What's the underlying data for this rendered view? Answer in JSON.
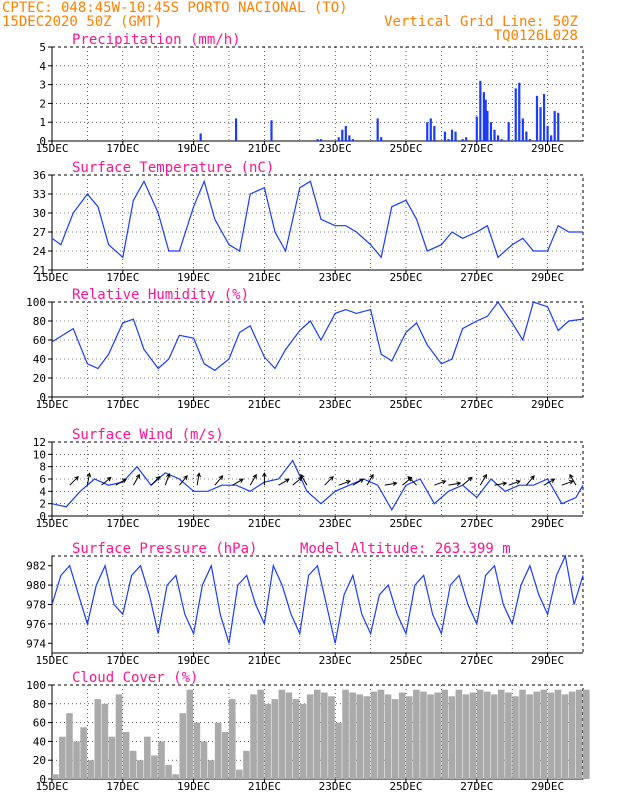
{
  "header": {
    "line1": "CPTEC:   048:45W-10:45S  PORTO NACIONAL (TO)",
    "line2": "15DEC2020 50Z (GMT)",
    "right1": "Vertical Grid Line: 50Z",
    "right2": "TQ0126L028"
  },
  "colors": {
    "header": "#ff8000",
    "title": "#ff1493",
    "line": "#1a3cff",
    "cloud": "#aaaaaa",
    "wind": "#000000"
  },
  "chart_data": [
    {
      "type": "bar",
      "key": "precip",
      "title": "Precipitation (mm/h)",
      "ylim": [
        0,
        5
      ],
      "yticks": [
        0,
        1,
        2,
        3,
        4,
        5
      ],
      "xticks": [
        "15DEC",
        "17DEC",
        "19DEC",
        "21DEC",
        "23DEC",
        "25DEC",
        "27DEC",
        "29DEC"
      ],
      "x_days": [
        0,
        15
      ],
      "x": [
        4.2,
        5.2,
        6.2,
        7.5,
        7.6,
        8.1,
        8.2,
        8.3,
        8.4,
        8.5,
        9.2,
        9.3,
        10.6,
        10.7,
        10.8,
        11.1,
        11.2,
        11.3,
        11.4,
        11.6,
        11.7,
        12.0,
        12.1,
        12.2,
        12.25,
        12.3,
        12.4,
        12.5,
        12.6,
        12.7,
        12.9,
        13.1,
        13.2,
        13.3,
        13.4,
        13.5,
        13.7,
        13.8,
        13.9,
        14.0,
        14.1,
        14.2,
        14.3
      ],
      "values": [
        0.4,
        1.2,
        1.1,
        0.1,
        0.1,
        0.2,
        0.6,
        0.8,
        0.3,
        0.1,
        1.2,
        0.2,
        1.0,
        1.2,
        0.8,
        0.5,
        0.1,
        0.6,
        0.5,
        0.1,
        0.2,
        1.3,
        3.2,
        2.6,
        2.2,
        1.6,
        1.0,
        0.6,
        0.3,
        0.1,
        1.0,
        2.8,
        3.1,
        1.2,
        0.5,
        0.1,
        2.4,
        1.8,
        2.5,
        0.8,
        0.3,
        1.6,
        1.5
      ]
    },
    {
      "type": "line",
      "key": "temp",
      "title": "Surface Temperature (nC)",
      "ylim": [
        21,
        36
      ],
      "yticks": [
        21,
        24,
        27,
        30,
        33,
        36
      ],
      "xticks": [
        "15DEC",
        "17DEC",
        "19DEC",
        "21DEC",
        "23DEC",
        "25DEC",
        "27DEC",
        "29DEC"
      ],
      "x_days": [
        0,
        15
      ],
      "x": [
        0,
        0.25,
        0.6,
        1.0,
        1.3,
        1.6,
        2.0,
        2.3,
        2.6,
        3.0,
        3.3,
        3.6,
        4.0,
        4.3,
        4.6,
        5.0,
        5.3,
        5.6,
        6.0,
        6.3,
        6.6,
        7.0,
        7.3,
        7.6,
        8.0,
        8.3,
        8.6,
        9.0,
        9.3,
        9.6,
        10.0,
        10.3,
        10.6,
        11.0,
        11.3,
        11.6,
        12.0,
        12.3,
        12.6,
        13.0,
        13.3,
        13.6,
        14.0,
        14.3,
        14.6,
        15.0
      ],
      "values": [
        26,
        25,
        30,
        33,
        31,
        25,
        23,
        32,
        35,
        30,
        24,
        24,
        31,
        35,
        29,
        25,
        24,
        33,
        34,
        27,
        24,
        34,
        35,
        29,
        28,
        28,
        27,
        25,
        23,
        31,
        32,
        29,
        24,
        25,
        27,
        26,
        27,
        28,
        23,
        25,
        26,
        24,
        24,
        28,
        27,
        27
      ]
    },
    {
      "type": "line",
      "key": "rh",
      "title": "Relative Humidity (%)",
      "ylim": [
        0,
        100
      ],
      "yticks": [
        0,
        20,
        40,
        60,
        80,
        100
      ],
      "xticks": [
        "15DEC",
        "17DEC",
        "19DEC",
        "21DEC",
        "23DEC",
        "25DEC",
        "27DEC",
        "29DEC"
      ],
      "x_days": [
        0,
        15
      ],
      "x": [
        0,
        0.3,
        0.6,
        1.0,
        1.3,
        1.6,
        2.0,
        2.3,
        2.6,
        3.0,
        3.3,
        3.6,
        4.0,
        4.3,
        4.6,
        5.0,
        5.3,
        5.6,
        6.0,
        6.3,
        6.6,
        7.0,
        7.3,
        7.6,
        8.0,
        8.3,
        8.6,
        9.0,
        9.3,
        9.6,
        10.0,
        10.3,
        10.6,
        11.0,
        11.3,
        11.6,
        12.0,
        12.3,
        12.6,
        13.0,
        13.3,
        13.6,
        14.0,
        14.3,
        14.6,
        15.0
      ],
      "values": [
        58,
        65,
        72,
        35,
        30,
        45,
        78,
        82,
        50,
        30,
        40,
        65,
        62,
        35,
        28,
        40,
        68,
        75,
        42,
        30,
        50,
        70,
        80,
        60,
        88,
        92,
        88,
        92,
        45,
        38,
        68,
        78,
        55,
        35,
        40,
        72,
        80,
        85,
        100,
        78,
        60,
        100,
        95,
        70,
        80,
        82
      ]
    },
    {
      "type": "line",
      "key": "wind",
      "title": "Surface Wind (m/s)",
      "ylim": [
        0,
        12
      ],
      "yticks": [
        0,
        2,
        4,
        6,
        8,
        10,
        12
      ],
      "xticks": [
        "15DEC",
        "17DEC",
        "19DEC",
        "21DEC",
        "23DEC",
        "25DEC",
        "27DEC",
        "29DEC"
      ],
      "x_days": [
        0,
        15
      ],
      "x": [
        0,
        0.4,
        0.8,
        1.2,
        1.6,
        2.0,
        2.4,
        2.8,
        3.2,
        3.6,
        4.0,
        4.4,
        4.8,
        5.2,
        5.6,
        6.0,
        6.4,
        6.8,
        7.2,
        7.6,
        8.0,
        8.4,
        8.8,
        9.2,
        9.6,
        10.0,
        10.4,
        10.8,
        11.2,
        11.6,
        12.0,
        12.4,
        12.8,
        13.2,
        13.6,
        14.0,
        14.4,
        14.8,
        15.0
      ],
      "values": [
        2,
        1.5,
        4,
        6,
        5,
        5.5,
        8,
        5,
        7,
        6,
        4,
        4,
        5,
        5,
        4,
        5.5,
        6,
        9,
        4,
        2,
        4,
        5,
        6,
        5,
        1,
        5,
        6,
        2,
        4,
        5,
        3,
        6,
        4,
        5,
        5,
        6,
        2,
        3,
        5
      ],
      "arrows": [
        {
          "x": 0.5,
          "dir": -135
        },
        {
          "x": 1.0,
          "dir": -100
        },
        {
          "x": 1.4,
          "dir": -140
        },
        {
          "x": 1.8,
          "dir": -150
        },
        {
          "x": 2.3,
          "dir": -120
        },
        {
          "x": 2.8,
          "dir": -135
        },
        {
          "x": 3.2,
          "dir": -110
        },
        {
          "x": 3.6,
          "dir": -130
        },
        {
          "x": 4.1,
          "dir": -100
        },
        {
          "x": 4.6,
          "dir": -130
        },
        {
          "x": 5.1,
          "dir": -150
        },
        {
          "x": 5.6,
          "dir": -120
        },
        {
          "x": 6.0,
          "dir": -90
        },
        {
          "x": 6.4,
          "dir": -150
        },
        {
          "x": 6.8,
          "dir": -140
        },
        {
          "x": 7.2,
          "dir": -60
        },
        {
          "x": 7.7,
          "dir": -135
        },
        {
          "x": 8.1,
          "dir": -160
        },
        {
          "x": 8.5,
          "dir": -150
        },
        {
          "x": 8.9,
          "dir": -120
        },
        {
          "x": 9.4,
          "dir": -170
        },
        {
          "x": 9.9,
          "dir": -140
        },
        {
          "x": 10.3,
          "dir": -45
        },
        {
          "x": 10.8,
          "dir": -160
        },
        {
          "x": 11.2,
          "dir": -170
        },
        {
          "x": 11.6,
          "dir": -140
        },
        {
          "x": 12.1,
          "dir": -120
        },
        {
          "x": 12.5,
          "dir": -170
        },
        {
          "x": 12.9,
          "dir": -160
        },
        {
          "x": 13.4,
          "dir": -130
        },
        {
          "x": 13.9,
          "dir": -150
        },
        {
          "x": 14.4,
          "dir": -160
        },
        {
          "x": 14.8,
          "dir": -60
        }
      ]
    },
    {
      "type": "line",
      "key": "press",
      "title": "Surface Pressure (hPa)",
      "extra_label": "Model Altitude: 263.399 m",
      "ylim": [
        973,
        983
      ],
      "yticks": [
        974,
        976,
        978,
        980,
        982
      ],
      "xticks": [
        "15DEC",
        "17DEC",
        "19DEC",
        "21DEC",
        "23DEC",
        "25DEC",
        "27DEC",
        "29DEC"
      ],
      "x_days": [
        0,
        15
      ],
      "x": [
        0,
        0.25,
        0.5,
        0.75,
        1.0,
        1.25,
        1.5,
        1.75,
        2.0,
        2.25,
        2.5,
        2.75,
        3.0,
        3.25,
        3.5,
        3.75,
        4.0,
        4.25,
        4.5,
        4.75,
        5.0,
        5.25,
        5.5,
        5.75,
        6.0,
        6.25,
        6.5,
        6.75,
        7.0,
        7.25,
        7.5,
        7.75,
        8.0,
        8.25,
        8.5,
        8.75,
        9.0,
        9.25,
        9.5,
        9.75,
        10.0,
        10.25,
        10.5,
        10.75,
        11.0,
        11.25,
        11.5,
        11.75,
        12.0,
        12.25,
        12.5,
        12.75,
        13.0,
        13.25,
        13.5,
        13.75,
        14.0,
        14.25,
        14.5,
        14.75,
        15.0
      ],
      "values": [
        978,
        981,
        982,
        979,
        976,
        980,
        982,
        978,
        977,
        981,
        982,
        979,
        975,
        980,
        981,
        977,
        975,
        980,
        982,
        977,
        974,
        980,
        981,
        978,
        976,
        982,
        980,
        977,
        975,
        981,
        982,
        978,
        974,
        979,
        981,
        977,
        975,
        979,
        980,
        977,
        975,
        980,
        981,
        977,
        975,
        980,
        981,
        978,
        976,
        981,
        982,
        978,
        976,
        980,
        982,
        979,
        977,
        981,
        983,
        978,
        981
      ]
    },
    {
      "type": "area",
      "key": "cloud",
      "title": "Cloud Cover (%)",
      "ylim": [
        0,
        100
      ],
      "yticks": [
        0,
        20,
        40,
        60,
        80,
        100
      ],
      "xticks": [
        "15DEC",
        "17DEC",
        "19DEC",
        "21DEC",
        "23DEC",
        "25DEC",
        "27DEC",
        "29DEC"
      ],
      "x_days": [
        0,
        15
      ],
      "x": [
        0.0,
        0.2,
        0.4,
        0.6,
        0.8,
        1.0,
        1.2,
        1.4,
        1.6,
        1.8,
        2.0,
        2.2,
        2.4,
        2.6,
        2.8,
        3.0,
        3.2,
        3.4,
        3.6,
        3.8,
        4.0,
        4.2,
        4.4,
        4.6,
        4.8,
        5.0,
        5.2,
        5.4,
        5.6,
        5.8,
        6.0,
        6.2,
        6.4,
        6.6,
        6.8,
        7.0,
        7.2,
        7.4,
        7.6,
        7.8,
        8.0,
        8.2,
        8.4,
        8.6,
        8.8,
        9.0,
        9.2,
        9.4,
        9.6,
        9.8,
        10.0,
        10.2,
        10.4,
        10.6,
        10.8,
        11.0,
        11.2,
        11.4,
        11.6,
        11.8,
        12.0,
        12.2,
        12.4,
        12.6,
        12.8,
        13.0,
        13.2,
        13.4,
        13.6,
        13.8,
        14.0,
        14.2,
        14.4,
        14.6,
        14.8,
        15.0
      ],
      "values": [
        5,
        45,
        70,
        40,
        55,
        20,
        85,
        80,
        45,
        90,
        50,
        30,
        20,
        45,
        25,
        40,
        15,
        5,
        70,
        95,
        60,
        40,
        20,
        60,
        50,
        85,
        10,
        30,
        90,
        95,
        80,
        85,
        95,
        92,
        85,
        80,
        90,
        95,
        92,
        88,
        60,
        95,
        92,
        90,
        88,
        93,
        95,
        90,
        85,
        92,
        88,
        95,
        93,
        90,
        92,
        95,
        88,
        95,
        90,
        92,
        95,
        93,
        90,
        95,
        92,
        88,
        95,
        90,
        93,
        95,
        92,
        95,
        90,
        93,
        95,
        95
      ]
    }
  ]
}
